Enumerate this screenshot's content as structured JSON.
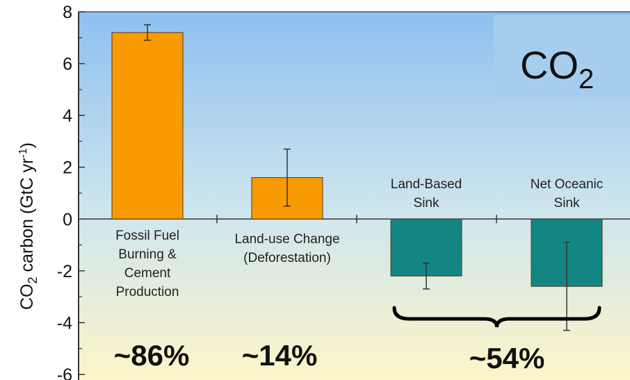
{
  "chart_data": {
    "type": "bar",
    "title": "",
    "xlabel": "",
    "ylabel": {
      "prefix": "CO",
      "sub": "2",
      "mid": " carbon (GtC yr",
      "sup": "-1",
      "suffix": ")"
    },
    "ylim": [
      -6,
      8
    ],
    "yticks": [
      {
        "value": 8,
        "label": "8"
      },
      {
        "value": 6,
        "label": "6"
      },
      {
        "value": 4,
        "label": "4"
      },
      {
        "value": 2,
        "label": "2"
      },
      {
        "value": 0,
        "label": "0"
      },
      {
        "value": -2,
        "label": "-2"
      },
      {
        "value": -4,
        "label": "-4"
      },
      {
        "value": -6,
        "label": "-6"
      }
    ],
    "bars": [
      {
        "label_lines": [
          "Fossil Fuel",
          "Burning &",
          "Cement",
          "Production"
        ],
        "value": 7.2,
        "error_low": 6.9,
        "error_high": 7.5,
        "color": "#f99a00",
        "percent": "~86%"
      },
      {
        "label_lines": [
          "Land-use Change",
          "(Deforestation)"
        ],
        "value": 1.6,
        "error_low": 0.5,
        "error_high": 2.7,
        "color": "#f99a00",
        "percent": "~14%"
      },
      {
        "label_lines": [
          "Land-Based",
          "Sink"
        ],
        "value": -2.2,
        "error_low": -2.7,
        "error_high": -1.7,
        "color": "#138684"
      },
      {
        "label_lines": [
          "Net Oceanic",
          "Sink"
        ],
        "value": -2.6,
        "error_low": -4.3,
        "error_high": -0.9,
        "color": "#138684"
      }
    ],
    "group_annotation": {
      "text": "~54%",
      "bars": [
        2,
        3
      ]
    },
    "inset_label": {
      "main": "CO",
      "sub": "2"
    },
    "grid": false,
    "background_gradient": [
      "#8ec0ef",
      "#fdf5c8"
    ]
  }
}
